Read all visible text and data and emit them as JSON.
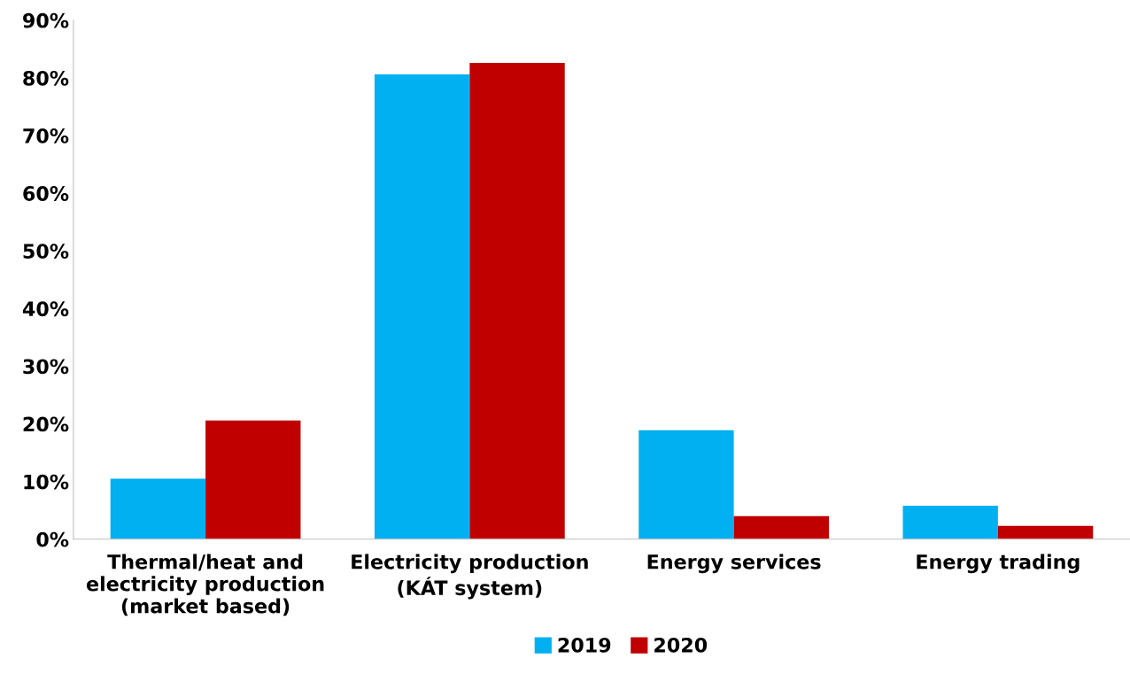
{
  "chart_data": {
    "type": "bar",
    "categories": [
      "Thermal/heat and\nelectricity production\n(market based)",
      "Electricity production\n(KÁT system)",
      "Energy services",
      "Energy trading"
    ],
    "series": [
      {
        "name": "2019",
        "color": "#00b0f0",
        "values": [
          10.5,
          80.6,
          18.9,
          5.8
        ]
      },
      {
        "name": "2020",
        "color": "#c00000",
        "values": [
          20.6,
          82.6,
          4.0,
          2.3
        ]
      }
    ],
    "ylim": [
      0,
      90
    ],
    "yticks": [
      {
        "value": 0,
        "label": "0%"
      },
      {
        "value": 10,
        "label": "10%"
      },
      {
        "value": 20,
        "label": "20%"
      },
      {
        "value": 30,
        "label": "30%"
      },
      {
        "value": 40,
        "label": "40%"
      },
      {
        "value": 50,
        "label": "50%"
      },
      {
        "value": 60,
        "label": "60%"
      },
      {
        "value": 70,
        "label": "70%"
      },
      {
        "value": 80,
        "label": "80%"
      },
      {
        "value": 90,
        "label": "90%"
      }
    ],
    "grid": false,
    "legend": "bottom"
  }
}
